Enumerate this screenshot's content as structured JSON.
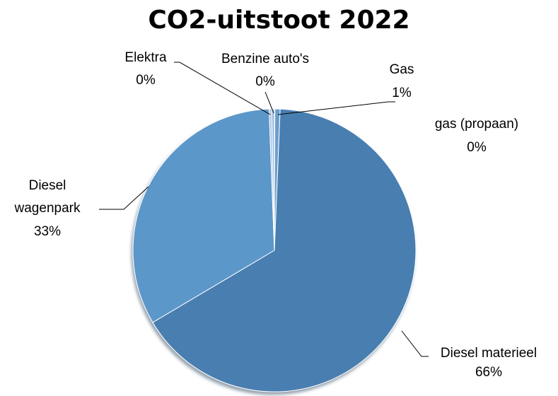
{
  "chart_data": {
    "type": "pie",
    "title": "CO2-uitstoot  2022",
    "slices": [
      {
        "name": "Diesel materieel",
        "value": 66,
        "label": "66%",
        "color": "#4a7eb0"
      },
      {
        "name": "Diesel wagenpark",
        "value": 33,
        "label": "33%",
        "color": "#5b97c9"
      },
      {
        "name": "Elektra",
        "value": 0.3,
        "label": "0%",
        "color": "#aec6e4"
      },
      {
        "name": "Benzine auto's",
        "value": 0.3,
        "label": "0%",
        "color": "#9bb9dd"
      },
      {
        "name": "Gas",
        "value": 0.6,
        "label": "1%",
        "color": "#6b9fcf"
      },
      {
        "name": "gas (propaan)",
        "value": 0.05,
        "label": "0%",
        "color": "#3d6d9e"
      }
    ]
  }
}
